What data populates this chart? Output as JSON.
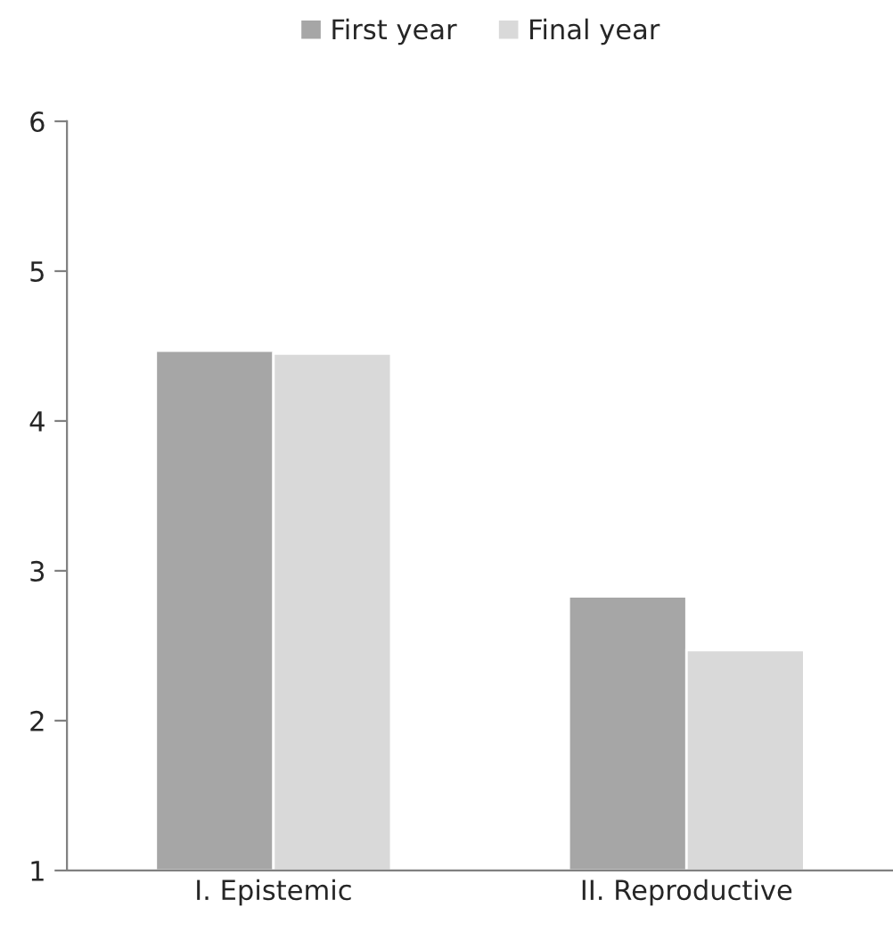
{
  "chart_data": {
    "type": "bar",
    "categories": [
      "I. Epistemic",
      "II. Reproductive"
    ],
    "series": [
      {
        "name": "First year",
        "color": "#a6a6a6",
        "values": [
          4.47,
          2.83
        ]
      },
      {
        "name": "Final year",
        "color": "#d9d9d9",
        "values": [
          4.45,
          2.47
        ]
      }
    ],
    "ylim": [
      1,
      6
    ],
    "yticks": [
      1,
      2,
      3,
      4,
      5,
      6
    ],
    "grid": false,
    "legend": "top"
  }
}
